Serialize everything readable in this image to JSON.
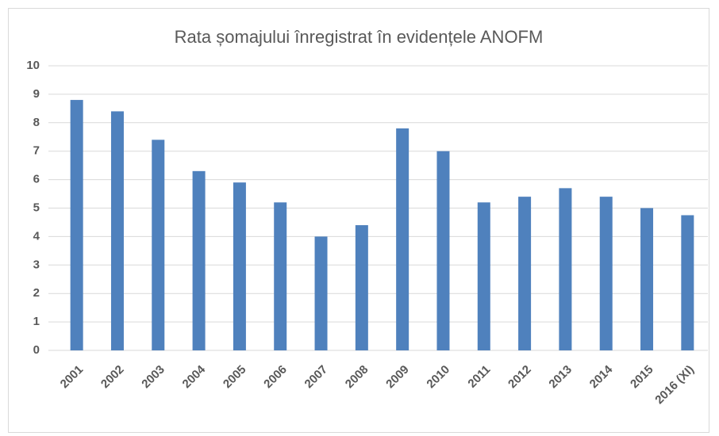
{
  "chart_data": {
    "type": "bar",
    "title": "Rata șomajului înregistrat în evidențele ANOFM",
    "categories": [
      "2001",
      "2002",
      "2003",
      "2004",
      "2005",
      "2006",
      "2007",
      "2008",
      "2009",
      "2010",
      "2011",
      "2012",
      "2013",
      "2014",
      "2015",
      "2016 (XI)"
    ],
    "values": [
      8.8,
      8.4,
      7.4,
      6.3,
      5.9,
      5.2,
      4.0,
      4.4,
      7.8,
      7.0,
      5.2,
      5.4,
      5.7,
      5.4,
      5.0,
      4.75
    ],
    "color": "#4f81bd",
    "ylim": [
      0,
      10
    ],
    "yticks": [
      0,
      1,
      2,
      3,
      4,
      5,
      6,
      7,
      8,
      9,
      10
    ],
    "grid": true
  }
}
